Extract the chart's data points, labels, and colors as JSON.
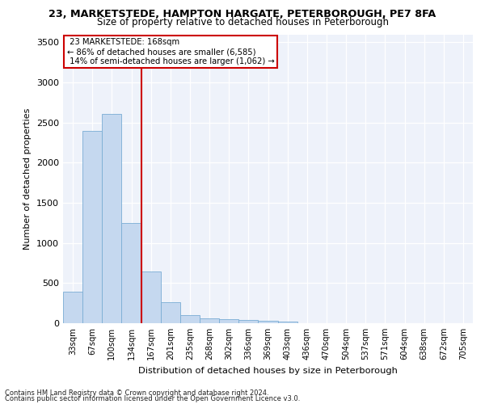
{
  "title_line1": "23, MARKETSTEDE, HAMPTON HARGATE, PETERBOROUGH, PE7 8FA",
  "title_line2": "Size of property relative to detached houses in Peterborough",
  "xlabel": "Distribution of detached houses by size in Peterborough",
  "ylabel": "Number of detached properties",
  "categories": [
    "33sqm",
    "67sqm",
    "100sqm",
    "134sqm",
    "167sqm",
    "201sqm",
    "235sqm",
    "268sqm",
    "302sqm",
    "336sqm",
    "369sqm",
    "403sqm",
    "436sqm",
    "470sqm",
    "504sqm",
    "537sqm",
    "571sqm",
    "604sqm",
    "638sqm",
    "672sqm",
    "705sqm"
  ],
  "values": [
    390,
    2400,
    2610,
    1250,
    640,
    260,
    105,
    60,
    55,
    40,
    30,
    25,
    0,
    0,
    0,
    0,
    0,
    0,
    0,
    0,
    0
  ],
  "bar_color": "#c5d8ef",
  "bar_edge_color": "#7aadd4",
  "vline_x": 3.5,
  "highlight_label": "23 MARKETSTEDE: 168sqm",
  "highlight_pct_smaller": "86% of detached houses are smaller (6,585)",
  "highlight_pct_larger": "14% of semi-detached houses are larger (1,062)",
  "vline_color": "#cc0000",
  "annotation_box_edge_color": "#cc0000",
  "ylim": [
    0,
    3600
  ],
  "yticks": [
    0,
    500,
    1000,
    1500,
    2000,
    2500,
    3000,
    3500
  ],
  "grid_color": "#d0d8e8",
  "background_color": "#eef2fa",
  "footer_line1": "Contains HM Land Registry data © Crown copyright and database right 2024.",
  "footer_line2": "Contains public sector information licensed under the Open Government Licence v3.0."
}
